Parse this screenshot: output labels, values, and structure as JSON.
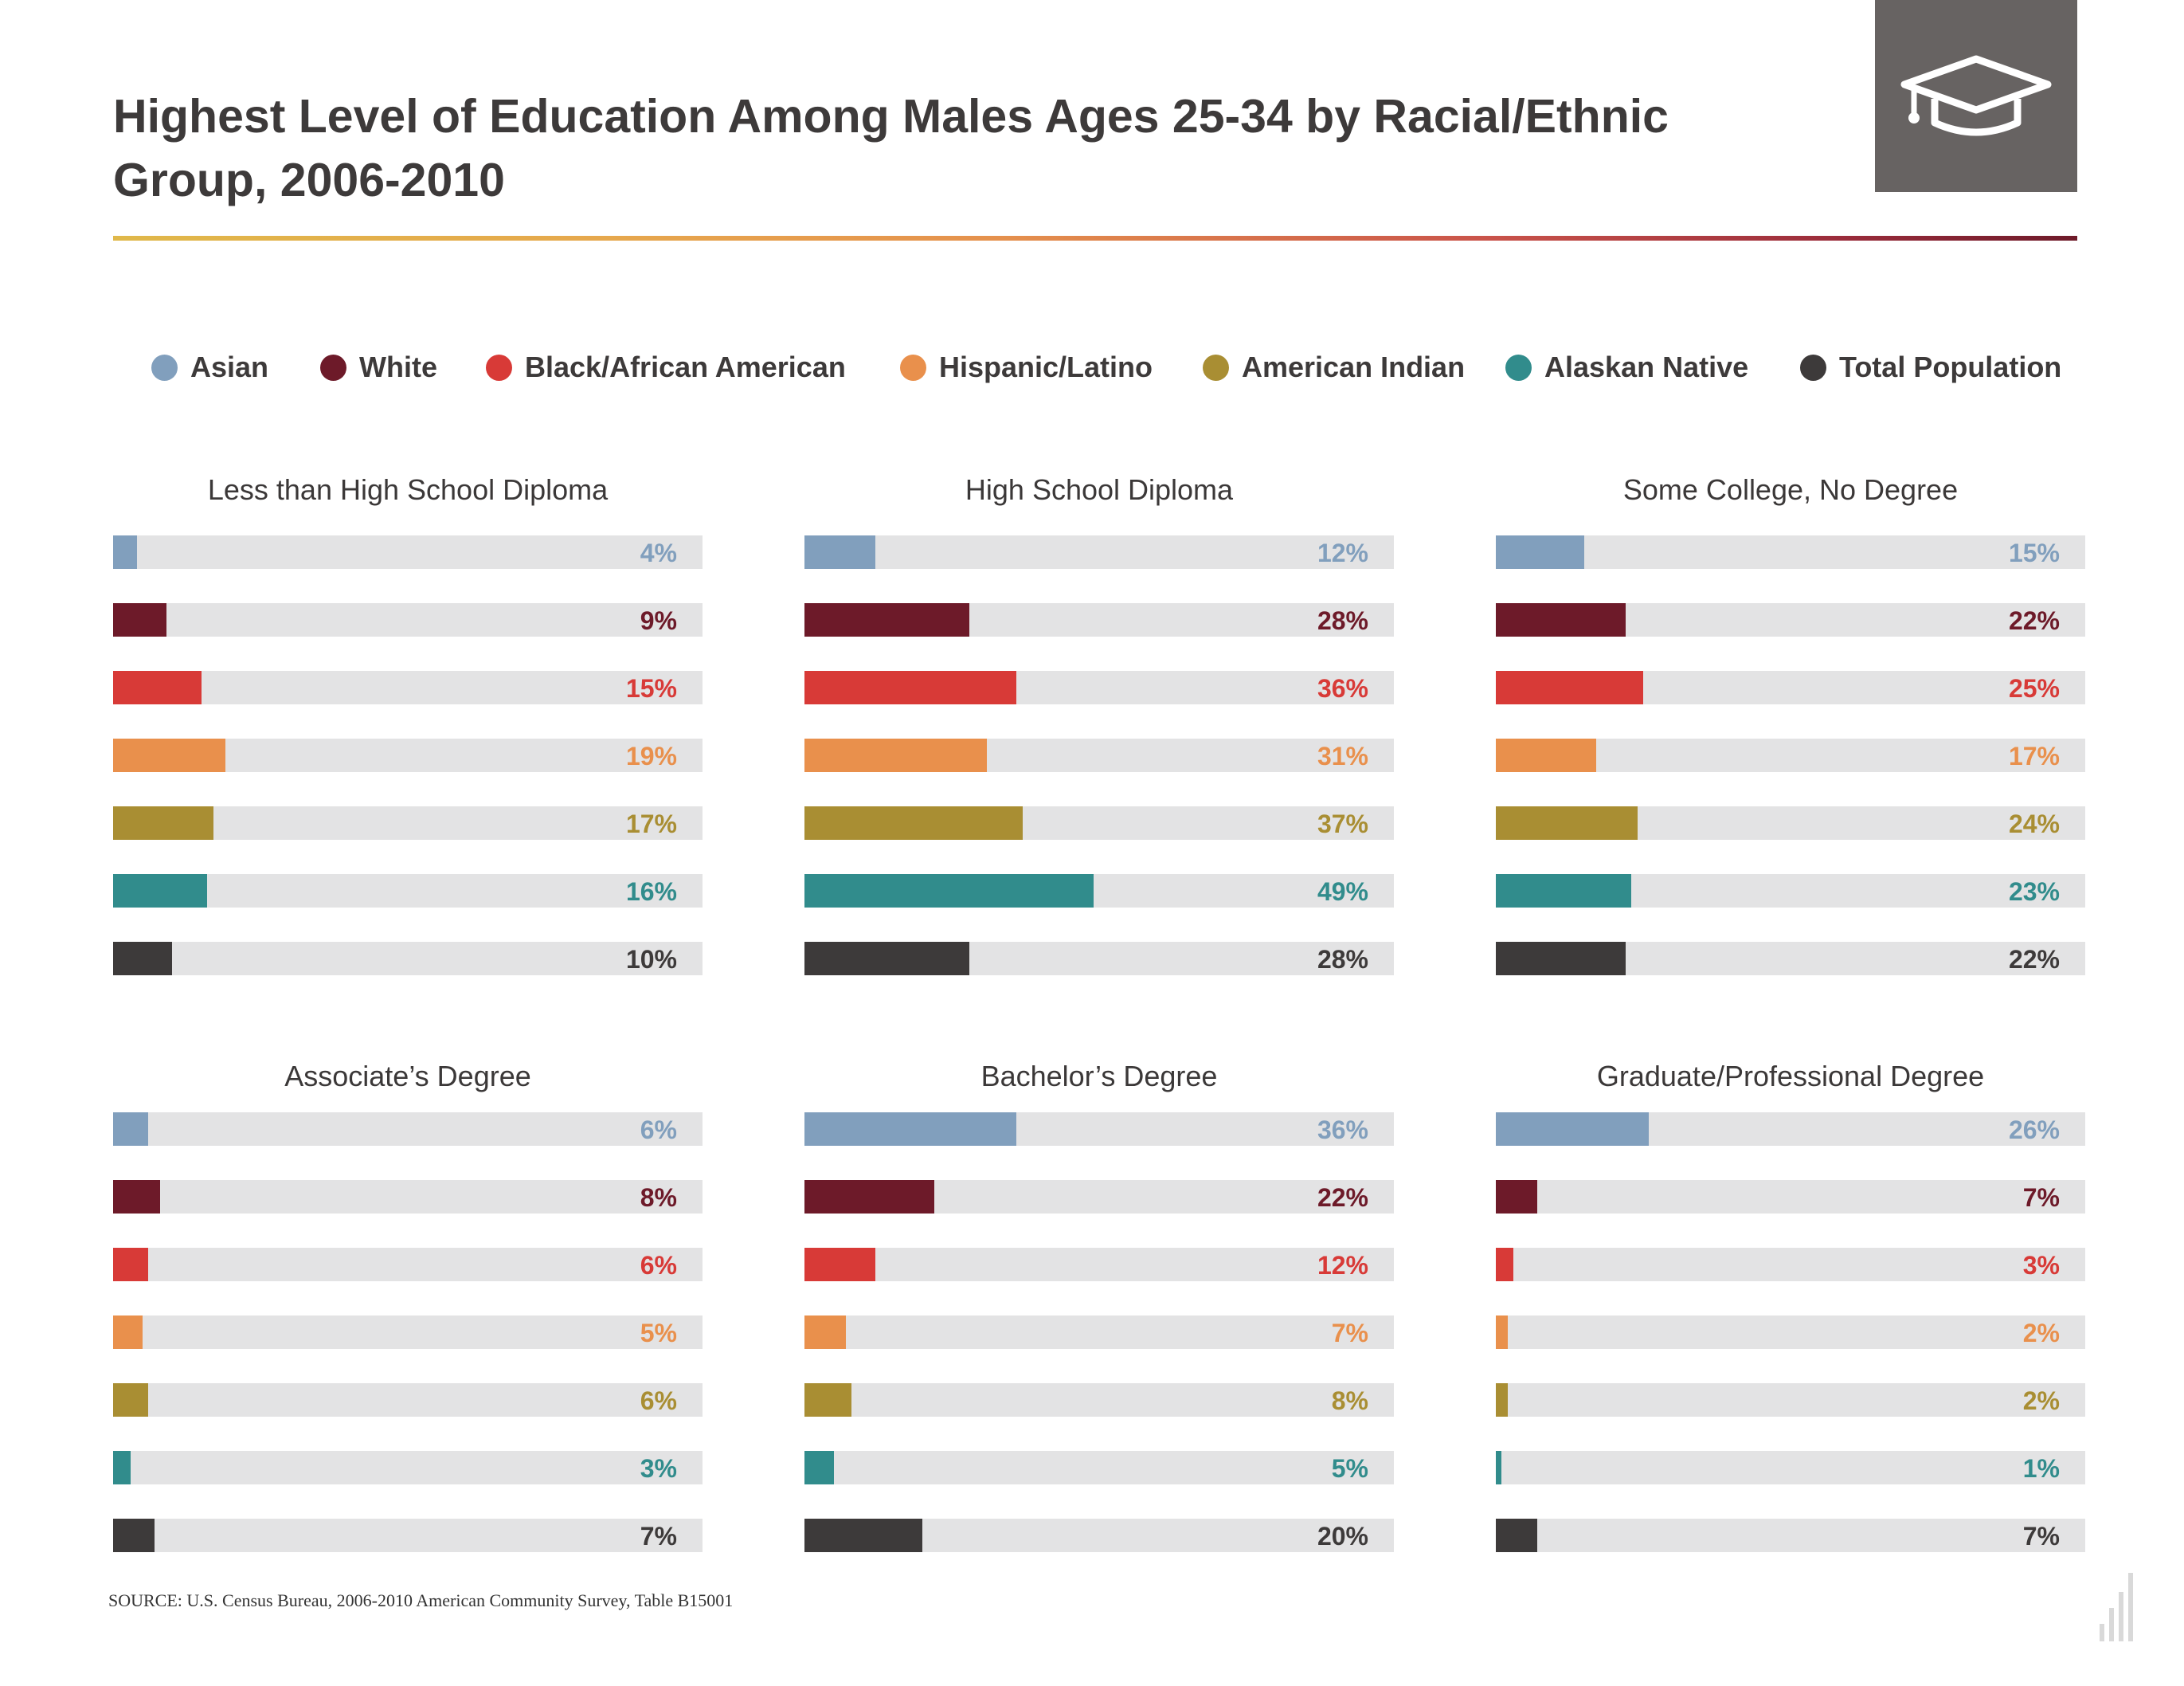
{
  "title_line1": "Highest Level of Education Among Males Ages 25-34 by Racial/Ethnic",
  "title_line2": "Group, 2006-2010",
  "icon": "graduation-cap-icon",
  "source": "SOURCE: U.S. Census Bureau, 2006-2010 American Community Survey, Table B15001",
  "colors": {
    "Asian": "#819fbd",
    "White": "#6d1a29",
    "Black/African American": "#d83a37",
    "Hispanic/Latino": "#e9904c",
    "American Indian": "#a98e33",
    "Alaskan Native": "#318c8c",
    "Total Population": "#3d3a3a",
    "track": "#e3e3e4"
  },
  "legend": [
    "Asian",
    "White",
    "Black/African American",
    "Hispanic/Latino",
    "American Indian",
    "Alaskan Native",
    "Total Population"
  ],
  "chart_data": [
    {
      "type": "bar",
      "title": "Less than High School Diploma",
      "categories": [
        "Asian",
        "White",
        "Black/African American",
        "Hispanic/Latino",
        "American Indian",
        "Alaskan Native",
        "Total Population"
      ],
      "values": [
        4,
        9,
        15,
        19,
        17,
        16,
        10
      ],
      "labels": [
        "4%",
        "9%",
        "15%",
        "19%",
        "17%",
        "16%",
        "10%"
      ],
      "unit": "%",
      "xlim": [
        0,
        100
      ]
    },
    {
      "type": "bar",
      "title": "High School Diploma",
      "categories": [
        "Asian",
        "White",
        "Black/African American",
        "Hispanic/Latino",
        "American Indian",
        "Alaskan Native",
        "Total Population"
      ],
      "values": [
        12,
        28,
        36,
        31,
        37,
        49,
        28
      ],
      "labels": [
        "12%",
        "28%",
        "36%",
        "31%",
        "37%",
        "49%",
        "28%"
      ],
      "unit": "%",
      "xlim": [
        0,
        100
      ]
    },
    {
      "type": "bar",
      "title": "Some College, No Degree",
      "categories": [
        "Asian",
        "White",
        "Black/African American",
        "Hispanic/Latino",
        "American Indian",
        "Alaskan Native",
        "Total Population"
      ],
      "values": [
        15,
        22,
        25,
        17,
        24,
        23,
        22
      ],
      "labels": [
        "15%",
        "22%",
        "25%",
        "17%",
        "24%",
        "23%",
        "22%"
      ],
      "unit": "%",
      "xlim": [
        0,
        100
      ]
    },
    {
      "type": "bar",
      "title": "Associate’s Degree",
      "categories": [
        "Asian",
        "White",
        "Black/African American",
        "Hispanic/Latino",
        "American Indian",
        "Alaskan Native",
        "Total Population"
      ],
      "values": [
        6,
        8,
        6,
        5,
        6,
        3,
        7
      ],
      "labels": [
        "6%",
        "8%",
        "6%",
        "5%",
        "6%",
        "3%",
        "7%"
      ],
      "unit": "%",
      "xlim": [
        0,
        100
      ]
    },
    {
      "type": "bar",
      "title": "Bachelor’s Degree",
      "categories": [
        "Asian",
        "White",
        "Black/African American",
        "Hispanic/Latino",
        "American Indian",
        "Alaskan Native",
        "Total Population"
      ],
      "values": [
        36,
        22,
        12,
        7,
        8,
        5,
        20
      ],
      "labels": [
        "36%",
        "22%",
        "12%",
        "7%",
        "8%",
        "5%",
        "20%"
      ],
      "unit": "%",
      "xlim": [
        0,
        100
      ]
    },
    {
      "type": "bar",
      "title": "Graduate/Professional Degree",
      "categories": [
        "Asian",
        "White",
        "Black/African American",
        "Hispanic/Latino",
        "American Indian",
        "Alaskan Native",
        "Total Population"
      ],
      "values": [
        26,
        7,
        3,
        2,
        2,
        1,
        7
      ],
      "labels": [
        "26%",
        "7%",
        "3%",
        "2%",
        "2%",
        "1%",
        "7%"
      ],
      "unit": "%",
      "xlim": [
        0,
        100
      ]
    }
  ]
}
